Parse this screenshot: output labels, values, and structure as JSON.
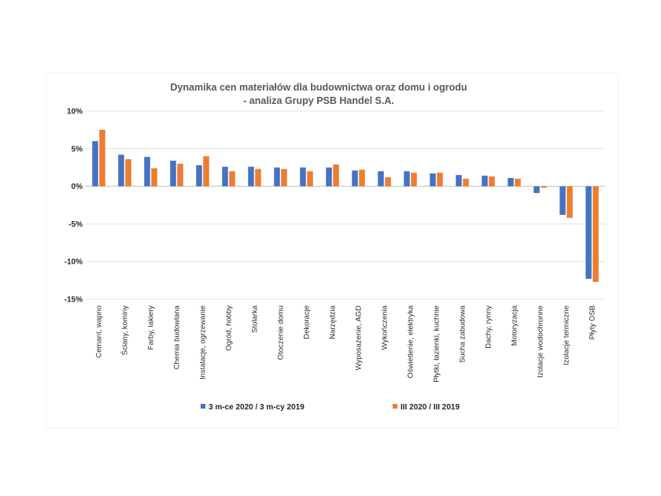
{
  "chart_data": {
    "type": "bar",
    "title": "Dynamika cen materiałów dla budownictwa oraz domu i ogrodu",
    "subtitle": "- analiza Grupy PSB Handel S.A.",
    "xlabel": "",
    "ylabel": "",
    "ylim": [
      -15,
      10
    ],
    "yticks": [
      {
        "value": 10,
        "label": "10%"
      },
      {
        "value": 5,
        "label": "5%"
      },
      {
        "value": 0,
        "label": "0%"
      },
      {
        "value": -5,
        "label": "-5%"
      },
      {
        "value": -10,
        "label": "-10%"
      },
      {
        "value": -15,
        "label": "-15%"
      }
    ],
    "grid": true,
    "legend": "bottom",
    "categories": [
      "Cemant, wapno",
      "Ściany, kominy",
      "Farby, lakiery",
      "Chemia budowlana",
      "Instalacje, ogrzewanie",
      "Ogród, hobby",
      "Stolarka",
      "Otoczenie domu",
      "Dekoracje",
      "Narzędzia",
      "Wyposażenie, AGD",
      "Wykończenia",
      "Oświetlenie, elektryka",
      "Płytki, łazienki, kuchnie",
      "Sucha zabudowa",
      "Dachy, rynny",
      "Motoryzacja",
      "Izolacje wodochronne",
      "Izolacje termiczne",
      "Płyty OSB"
    ],
    "series": [
      {
        "name": "3 m-ce 2020 / 3 m-cy 2019",
        "color": "#4472c4",
        "values": [
          6.0,
          4.2,
          3.9,
          3.4,
          2.8,
          2.6,
          2.6,
          2.5,
          2.5,
          2.5,
          2.1,
          2.0,
          2.0,
          1.7,
          1.5,
          1.4,
          1.1,
          -0.9,
          -3.8,
          -12.3
        ]
      },
      {
        "name": "III 2020 / III 2019",
        "color": "#ed7d31",
        "values": [
          7.5,
          3.6,
          2.4,
          3.0,
          4.0,
          2.0,
          2.3,
          2.3,
          2.0,
          2.9,
          2.2,
          1.2,
          1.8,
          1.8,
          1.0,
          1.3,
          1.0,
          -0.2,
          -4.2,
          -12.7
        ]
      }
    ]
  }
}
